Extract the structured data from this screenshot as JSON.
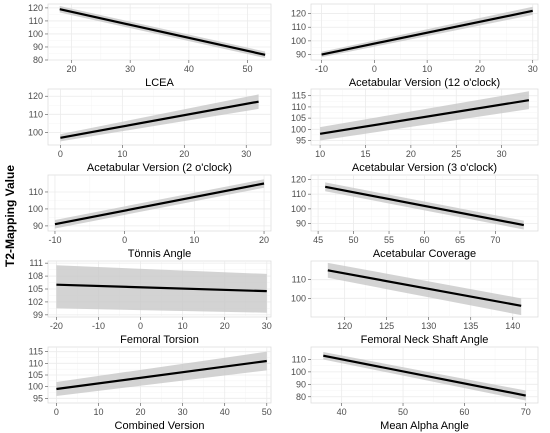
{
  "y_label": "T2-Mapping Value",
  "chart_data": [
    {
      "type": "line",
      "xlabel": "LCEA",
      "xlim": [
        16,
        54
      ],
      "ylim": [
        80,
        123
      ],
      "xticks": [
        20,
        30,
        40,
        50
      ],
      "yticks": [
        80,
        90,
        100,
        110,
        120
      ],
      "fit_x": [
        18,
        53
      ],
      "fit_y": [
        119,
        84
      ],
      "ci_lower": [
        116.5,
        81.5
      ],
      "ci_upper": [
        121.5,
        86.5
      ]
    },
    {
      "type": "line",
      "xlabel": "Acetabular Version (12 o'clock)",
      "xlim": [
        -12,
        31
      ],
      "ylim": [
        86,
        127
      ],
      "xticks": [
        -10,
        0,
        10,
        20,
        30
      ],
      "yticks": [
        90,
        100,
        110,
        120
      ],
      "fit_x": [
        -10,
        30
      ],
      "fit_y": [
        90,
        122
      ],
      "ci_lower": [
        88,
        119
      ],
      "ci_upper": [
        92,
        125
      ]
    },
    {
      "type": "line",
      "xlabel": "Acetabular Version (2 o'clock)",
      "xlim": [
        -2,
        34
      ],
      "ylim": [
        93,
        124
      ],
      "xticks": [
        0,
        10,
        20,
        30
      ],
      "yticks": [
        100,
        110,
        120
      ],
      "fit_x": [
        0,
        32
      ],
      "fit_y": [
        97,
        117
      ],
      "ci_lower": [
        95,
        113
      ],
      "ci_upper": [
        99,
        121
      ]
    },
    {
      "type": "line",
      "xlabel": "Acetabular Version (3 o'clock)",
      "xlim": [
        9,
        34
      ],
      "ylim": [
        93,
        118
      ],
      "xticks": [
        10,
        15,
        20,
        25,
        30
      ],
      "yticks": [
        95,
        100,
        105,
        110,
        115
      ],
      "fit_x": [
        10,
        33
      ],
      "fit_y": [
        98,
        113
      ],
      "ci_lower": [
        95,
        109
      ],
      "ci_upper": [
        101,
        117
      ]
    },
    {
      "type": "line",
      "xlabel": "Tönnis Angle",
      "xlim": [
        -11,
        21
      ],
      "ylim": [
        87,
        120
      ],
      "xticks": [
        -10,
        0,
        10,
        20
      ],
      "yticks": [
        90,
        100,
        110
      ],
      "fit_x": [
        -10,
        20
      ],
      "fit_y": [
        91,
        115
      ],
      "ci_lower": [
        88.5,
        112.5
      ],
      "ci_upper": [
        93.5,
        117.5
      ]
    },
    {
      "type": "line",
      "xlabel": "Acetabular Coverage",
      "xlim": [
        44,
        76
      ],
      "ylim": [
        85,
        123
      ],
      "xticks": [
        45,
        50,
        55,
        60,
        65,
        70
      ],
      "yticks": [
        90,
        100,
        110,
        120
      ],
      "fit_x": [
        46,
        74
      ],
      "fit_y": [
        115,
        89
      ],
      "ci_lower": [
        112,
        86
      ],
      "ci_upper": [
        118,
        92
      ]
    },
    {
      "type": "line",
      "xlabel": "Femoral Torsion",
      "xlim": [
        -22,
        31
      ],
      "ylim": [
        98.5,
        111.5
      ],
      "xticks": [
        -20,
        -10,
        0,
        10,
        20,
        30
      ],
      "yticks": [
        99,
        102,
        105,
        108,
        111
      ],
      "fit_x": [
        -20,
        30
      ],
      "fit_y": [
        106,
        104.5
      ],
      "ci_lower": [
        100.5,
        99.5
      ],
      "ci_upper": [
        110.5,
        108.5
      ]
    },
    {
      "type": "line",
      "xlabel": "Femoral Neck Shaft Angle",
      "xlim": [
        116,
        143
      ],
      "ylim": [
        90,
        120
      ],
      "xticks": [
        120,
        125,
        130,
        135,
        140
      ],
      "yticks": [
        100,
        110
      ],
      "fit_x": [
        118,
        141
      ],
      "fit_y": [
        115,
        96
      ],
      "ci_lower": [
        111,
        91
      ],
      "ci_upper": [
        119,
        100
      ]
    },
    {
      "type": "line",
      "xlabel": "Combined Version",
      "xlim": [
        -2,
        51
      ],
      "ylim": [
        93,
        117
      ],
      "xticks": [
        0,
        10,
        20,
        30,
        40,
        50
      ],
      "yticks": [
        95,
        100,
        105,
        110,
        115
      ],
      "fit_x": [
        0,
        50
      ],
      "fit_y": [
        99,
        111
      ],
      "ci_lower": [
        96,
        107
      ],
      "ci_upper": [
        102,
        115
      ]
    },
    {
      "type": "line",
      "xlabel": "Mean Alpha Angle",
      "xlim": [
        35,
        72
      ],
      "ylim": [
        75,
        120
      ],
      "xticks": [
        40,
        50,
        60,
        70
      ],
      "yticks": [
        80,
        90,
        100,
        110
      ],
      "fit_x": [
        37,
        70
      ],
      "fit_y": [
        113,
        81
      ],
      "ci_lower": [
        110,
        77
      ],
      "ci_upper": [
        116,
        85
      ]
    }
  ]
}
